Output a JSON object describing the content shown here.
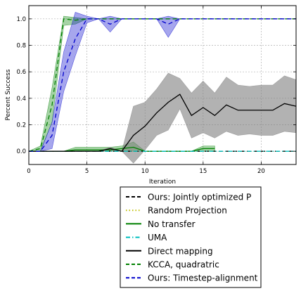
{
  "chart_data": {
    "type": "line",
    "title": "",
    "xlabel": "Iteration",
    "ylabel": "Percent Success",
    "xlim": [
      0,
      23
    ],
    "ylim": [
      -0.1,
      1.1
    ],
    "xticks": [
      0,
      5,
      10,
      15,
      20
    ],
    "yticks": [
      0.0,
      0.2,
      0.4,
      0.6,
      0.8,
      1.0
    ],
    "grid": true,
    "legend_position": "below-plot",
    "series": [
      {
        "name": "Ours: Jointly optimized P",
        "color": "#000000",
        "style": "dashed",
        "x": [
          0,
          1,
          2,
          3,
          4,
          5,
          6,
          7,
          8,
          9,
          10,
          11,
          12,
          13,
          14,
          15,
          16,
          17,
          18,
          19,
          20,
          21,
          22,
          23
        ],
        "y": [
          0,
          0,
          0,
          0,
          0,
          0,
          0,
          0,
          0,
          0,
          0,
          0,
          0,
          0,
          0,
          0,
          0,
          0,
          0,
          0,
          0,
          0,
          0,
          0
        ]
      },
      {
        "name": "Random Projection",
        "color": "#bfbf00",
        "style": "dotted",
        "x": [
          0,
          1,
          2,
          3,
          4,
          5,
          6,
          7,
          8,
          9,
          10,
          11,
          12,
          13,
          14,
          15,
          16,
          17,
          18,
          19,
          20,
          21,
          22,
          23
        ],
        "y": [
          0,
          0,
          0,
          0,
          0,
          0,
          0,
          0,
          0,
          0,
          0,
          0,
          0,
          0,
          0,
          0,
          0,
          0,
          0,
          0,
          0,
          0,
          0,
          0
        ]
      },
      {
        "name": "No transfer",
        "color": "#008000",
        "style": "solid",
        "x": [
          0,
          1,
          2,
          3,
          4,
          5,
          6,
          7,
          8,
          9,
          10,
          11,
          12,
          13,
          14,
          15,
          16
        ],
        "y": [
          0,
          0,
          0,
          0,
          0.01,
          0.01,
          0.01,
          0.01,
          0.02,
          0.03,
          0,
          0,
          0,
          0,
          0,
          0.02,
          0.02
        ],
        "band_lower": [
          0,
          0,
          0,
          0,
          0,
          0,
          0,
          0,
          0,
          0,
          0,
          0,
          0,
          0,
          0,
          0,
          0
        ],
        "band_upper": [
          0,
          0,
          0,
          0,
          0.03,
          0.03,
          0.03,
          0.03,
          0.04,
          0.07,
          0,
          0,
          0,
          0,
          0,
          0.04,
          0.04
        ]
      },
      {
        "name": "UMA",
        "color": "#00bfbf",
        "style": "dashdot",
        "x": [
          0,
          1,
          2,
          3,
          4,
          5,
          6,
          7,
          8,
          9,
          10,
          11,
          12,
          13,
          14,
          15,
          16,
          17,
          18,
          19,
          20,
          21,
          22,
          23
        ],
        "y": [
          0,
          0,
          0,
          0,
          0,
          0,
          0,
          0,
          0,
          0,
          0,
          0,
          0,
          0,
          0,
          0,
          0,
          0,
          0,
          0,
          0,
          0,
          0,
          0
        ]
      },
      {
        "name": "Direct mapping",
        "color": "#000000",
        "style": "solid",
        "x": [
          0,
          1,
          2,
          3,
          4,
          5,
          6,
          7,
          8,
          9,
          10,
          11,
          12,
          13,
          14,
          15,
          16,
          17,
          18,
          19,
          20,
          21,
          22,
          23
        ],
        "y": [
          0,
          0,
          0,
          0,
          0,
          0,
          0,
          0.02,
          0,
          0.12,
          0.19,
          0.29,
          0.37,
          0.43,
          0.27,
          0.33,
          0.27,
          0.35,
          0.31,
          0.31,
          0.31,
          0.31,
          0.36,
          0.34
        ],
        "band_lower": [
          0,
          0,
          0,
          0,
          0,
          0,
          0,
          0,
          0,
          -0.09,
          0.01,
          0.12,
          0.16,
          0.32,
          0.1,
          0.14,
          0.1,
          0.15,
          0.12,
          0.13,
          0.12,
          0.12,
          0.15,
          0.14
        ],
        "band_upper": [
          0,
          0,
          0,
          0,
          0,
          0,
          0,
          0.03,
          0,
          0.34,
          0.37,
          0.47,
          0.59,
          0.55,
          0.44,
          0.53,
          0.44,
          0.56,
          0.5,
          0.49,
          0.5,
          0.5,
          0.57,
          0.54
        ]
      },
      {
        "name": "KCCA, quadratric",
        "color": "#008000",
        "style": "dashed",
        "x": [
          0,
          1,
          2,
          3,
          4,
          5,
          6,
          7,
          8,
          9,
          10,
          11,
          12,
          13,
          14,
          15,
          16,
          17,
          18,
          19,
          20,
          21,
          22,
          23
        ],
        "y": [
          0,
          0.02,
          0.35,
          1.0,
          0.99,
          1.0,
          1.0,
          1.0,
          1.0,
          1.0,
          1.0,
          1.0,
          1.0,
          1.0,
          1.0,
          1.0,
          1.0,
          1.0,
          1.0,
          1.0,
          1.0,
          1.0,
          1.0,
          1.0
        ],
        "band_lower": [
          0,
          0,
          0.22,
          0.95,
          0.96,
          1.0,
          1.0,
          1.0,
          1.0,
          1.0,
          1.0,
          1.0,
          1.0,
          1.0,
          1.0,
          1.0,
          1.0,
          1.0,
          1.0,
          1.0,
          1.0,
          1.0,
          1.0,
          1.0
        ],
        "band_upper": [
          0,
          0.04,
          0.48,
          1.02,
          1.01,
          1.0,
          1.0,
          1.0,
          1.0,
          1.0,
          1.0,
          1.0,
          1.0,
          1.0,
          1.0,
          1.0,
          1.0,
          1.0,
          1.0,
          1.0,
          1.0,
          1.0,
          1.0,
          1.0
        ]
      },
      {
        "name": "Ours: Timestep-alignment",
        "color": "#0000cc",
        "style": "dashed",
        "x": [
          0,
          1,
          2,
          3,
          4,
          5,
          6,
          7,
          8,
          9,
          10,
          11,
          12,
          13,
          14,
          15,
          16,
          17,
          18,
          19,
          20,
          21,
          22,
          23
        ],
        "y": [
          0,
          0,
          0.12,
          0.6,
          0.85,
          1.0,
          1.0,
          0.96,
          1.0,
          1.0,
          1.0,
          1.0,
          0.96,
          1.0,
          1.0,
          1.0,
          1.0,
          1.0,
          1.0,
          1.0,
          1.0,
          1.0,
          1.0,
          1.0
        ],
        "band_lower": [
          0,
          0,
          0.02,
          0.45,
          0.72,
          0.97,
          1.0,
          0.9,
          1.0,
          1.0,
          1.0,
          1.0,
          0.86,
          1.0,
          1.0,
          1.0,
          1.0,
          1.0,
          1.0,
          1.0,
          1.0,
          1.0,
          1.0,
          1.0
        ],
        "band_upper": [
          0,
          0,
          0.22,
          0.75,
          1.05,
          1.02,
          1.0,
          1.02,
          1.0,
          1.0,
          1.0,
          1.0,
          1.02,
          1.0,
          1.0,
          1.0,
          1.0,
          1.0,
          1.0,
          1.0,
          1.0,
          1.0,
          1.0,
          1.0
        ]
      }
    ]
  }
}
